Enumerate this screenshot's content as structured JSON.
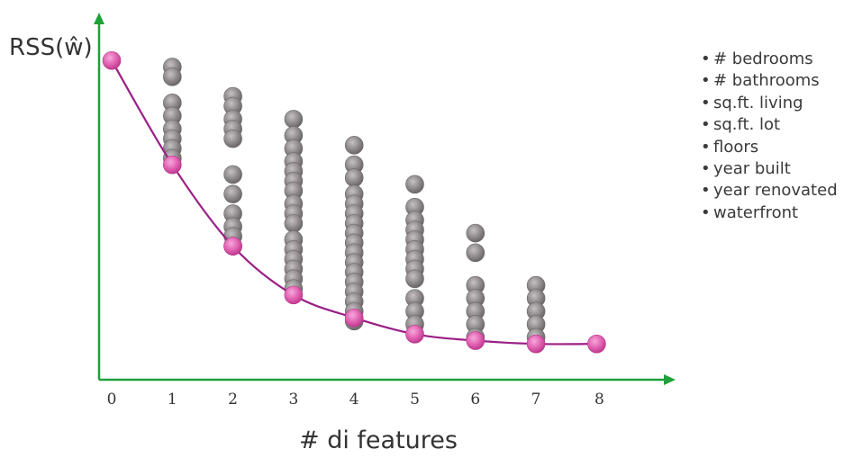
{
  "chart_data": {
    "type": "scatter",
    "ylabel": "RSS(ŵ)",
    "xlabel": "# di features",
    "x_ticks": [
      "0",
      "1",
      "2",
      "3",
      "4",
      "5",
      "6",
      "7",
      "8"
    ],
    "xlim": [
      0,
      8
    ],
    "ylim": [
      0,
      1
    ],
    "grid": false,
    "colors": {
      "axis": "#1fa03a",
      "all_subsets": "#8e8a8c",
      "best_subset": "#e060b0",
      "curve": "#9b1f86"
    },
    "series": [
      {
        "marker": "gray-circle",
        "points": [
          {
            "x": 1,
            "y": 0.96
          },
          {
            "x": 1,
            "y": 0.93
          },
          {
            "x": 1,
            "y": 0.85
          },
          {
            "x": 1,
            "y": 0.81
          },
          {
            "x": 1,
            "y": 0.77
          },
          {
            "x": 1,
            "y": 0.74
          },
          {
            "x": 1,
            "y": 0.71
          },
          {
            "x": 1,
            "y": 0.68
          },
          {
            "x": 2,
            "y": 0.87
          },
          {
            "x": 2,
            "y": 0.84
          },
          {
            "x": 2,
            "y": 0.8
          },
          {
            "x": 2,
            "y": 0.77
          },
          {
            "x": 2,
            "y": 0.74
          },
          {
            "x": 2,
            "y": 0.63
          },
          {
            "x": 2,
            "y": 0.57
          },
          {
            "x": 2,
            "y": 0.51
          },
          {
            "x": 2,
            "y": 0.47
          },
          {
            "x": 2,
            "y": 0.44
          },
          {
            "x": 2,
            "y": 0.41
          },
          {
            "x": 3,
            "y": 0.8
          },
          {
            "x": 3,
            "y": 0.75
          },
          {
            "x": 3,
            "y": 0.71
          },
          {
            "x": 3,
            "y": 0.67
          },
          {
            "x": 3,
            "y": 0.64
          },
          {
            "x": 3,
            "y": 0.61
          },
          {
            "x": 3,
            "y": 0.58
          },
          {
            "x": 3,
            "y": 0.54
          },
          {
            "x": 3,
            "y": 0.51
          },
          {
            "x": 3,
            "y": 0.48
          },
          {
            "x": 3,
            "y": 0.43
          },
          {
            "x": 3,
            "y": 0.4
          },
          {
            "x": 3,
            "y": 0.37
          },
          {
            "x": 3,
            "y": 0.34
          },
          {
            "x": 3,
            "y": 0.31
          },
          {
            "x": 3,
            "y": 0.28
          },
          {
            "x": 4,
            "y": 0.72
          },
          {
            "x": 4,
            "y": 0.66
          },
          {
            "x": 4,
            "y": 0.62
          },
          {
            "x": 4,
            "y": 0.57
          },
          {
            "x": 4,
            "y": 0.54
          },
          {
            "x": 4,
            "y": 0.51
          },
          {
            "x": 4,
            "y": 0.48
          },
          {
            "x": 4,
            "y": 0.45
          },
          {
            "x": 4,
            "y": 0.42
          },
          {
            "x": 4,
            "y": 0.39
          },
          {
            "x": 4,
            "y": 0.36
          },
          {
            "x": 4,
            "y": 0.33
          },
          {
            "x": 4,
            "y": 0.3
          },
          {
            "x": 4,
            "y": 0.27
          },
          {
            "x": 4,
            "y": 0.24
          },
          {
            "x": 4,
            "y": 0.21
          },
          {
            "x": 4,
            "y": 0.18
          },
          {
            "x": 5,
            "y": 0.6
          },
          {
            "x": 5,
            "y": 0.53
          },
          {
            "x": 5,
            "y": 0.49
          },
          {
            "x": 5,
            "y": 0.46
          },
          {
            "x": 5,
            "y": 0.43
          },
          {
            "x": 5,
            "y": 0.4
          },
          {
            "x": 5,
            "y": 0.37
          },
          {
            "x": 5,
            "y": 0.34
          },
          {
            "x": 5,
            "y": 0.31
          },
          {
            "x": 5,
            "y": 0.25
          },
          {
            "x": 5,
            "y": 0.21
          },
          {
            "x": 5,
            "y": 0.17
          },
          {
            "x": 6,
            "y": 0.45
          },
          {
            "x": 6,
            "y": 0.39
          },
          {
            "x": 6,
            "y": 0.29
          },
          {
            "x": 6,
            "y": 0.25
          },
          {
            "x": 6,
            "y": 0.21
          },
          {
            "x": 6,
            "y": 0.17
          },
          {
            "x": 6,
            "y": 0.13
          },
          {
            "x": 7,
            "y": 0.29
          },
          {
            "x": 7,
            "y": 0.25
          },
          {
            "x": 7,
            "y": 0.21
          },
          {
            "x": 7,
            "y": 0.17
          },
          {
            "x": 7,
            "y": 0.13
          }
        ]
      },
      {
        "marker": "pink-circle",
        "connected": true,
        "points": [
          {
            "x": 0,
            "y": 0.98
          },
          {
            "x": 1,
            "y": 0.66
          },
          {
            "x": 2,
            "y": 0.41
          },
          {
            "x": 3,
            "y": 0.26
          },
          {
            "x": 4,
            "y": 0.19
          },
          {
            "x": 5,
            "y": 0.14
          },
          {
            "x": 6,
            "y": 0.12
          },
          {
            "x": 7,
            "y": 0.11
          },
          {
            "x": 8,
            "y": 0.11
          }
        ]
      }
    ]
  },
  "legend": {
    "bullet": "•",
    "items": [
      "# bedrooms",
      "# bathrooms",
      "sq.ft. living",
      "sq.ft. lot",
      "floors",
      "year built",
      "year renovated",
      "waterfront"
    ]
  }
}
